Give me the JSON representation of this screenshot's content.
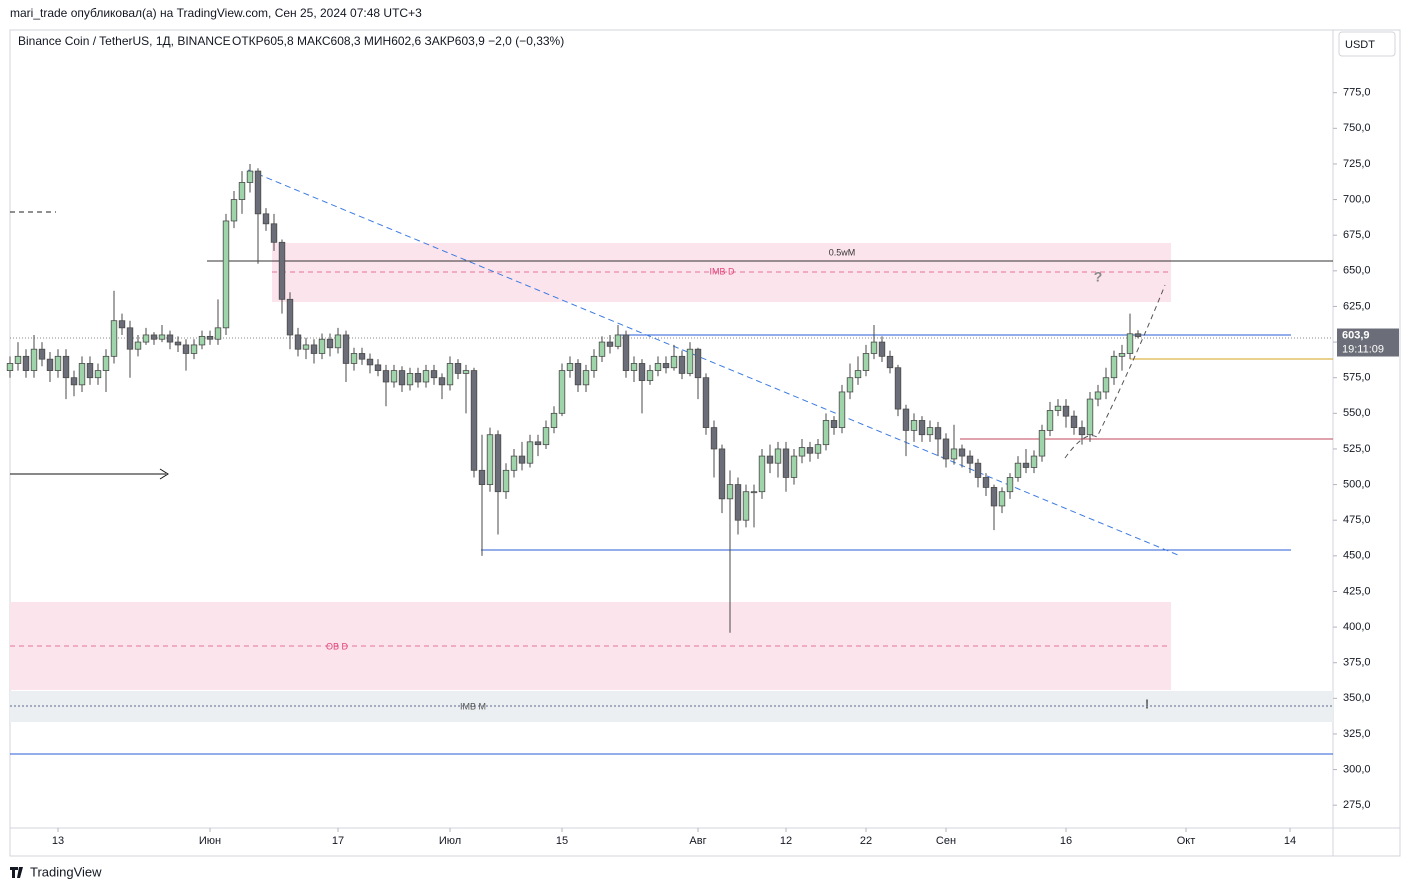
{
  "publisher": "mari_trade опубликовал(а) на TradingView.com, Сен 25, 2024 07:48 UTC+3",
  "currency_button": "USDT",
  "brand": "TradingView",
  "chart_data": {
    "type": "candlestick",
    "title": "Binance Coin / TetherUS, 1Д, BINANCE",
    "legend_text": "ОТКР605,8  МАКС608,3  МИН602,6  ЗАКР603,9  −2,0 (−0,33%)",
    "up_color": "#9fd4ab",
    "down_color": "#6b6e78",
    "wick_color": "#4a4a4a",
    "open": [
      580,
      585,
      590,
      580,
      595,
      588,
      580,
      590,
      575,
      570,
      585,
      575,
      580,
      590,
      615,
      610,
      595,
      600,
      605,
      602,
      605,
      600,
      598,
      592,
      598,
      604,
      602,
      610,
      685,
      700,
      712,
      720,
      690,
      683,
      670,
      630,
      605,
      595,
      598,
      592,
      602,
      596,
      605,
      585,
      592,
      588,
      584,
      580,
      572,
      580,
      570,
      578,
      572,
      580,
      575,
      570,
      585,
      578,
      580,
      510,
      500,
      535,
      495,
      510,
      520,
      515,
      530,
      528,
      540,
      550,
      580,
      585,
      570,
      580,
      590,
      600,
      597,
      605,
      580,
      585,
      573,
      580,
      585,
      582,
      590,
      578,
      595,
      575,
      540,
      525,
      490,
      500,
      475,
      495,
      495,
      520,
      515,
      525,
      505,
      520,
      526,
      522,
      528,
      545,
      540,
      565,
      575,
      580,
      592,
      600,
      590,
      582,
      553,
      538,
      545,
      535,
      540,
      532,
      518,
      525,
      520,
      515,
      505,
      498,
      485,
      495,
      505,
      515,
      512,
      520,
      538,
      552,
      555,
      548,
      540,
      535,
      560,
      565,
      575,
      590,
      592,
      605.8
    ],
    "high": [
      590,
      600,
      595,
      605,
      600,
      593,
      595,
      595,
      580,
      590,
      590,
      585,
      595,
      636,
      620,
      615,
      605,
      610,
      607,
      612,
      608,
      604,
      602,
      602,
      608,
      608,
      630,
      690,
      706,
      720,
      725,
      722,
      694,
      690,
      672,
      635,
      610,
      603,
      602,
      606,
      606,
      610,
      608,
      596,
      596,
      592,
      588,
      584,
      584,
      583,
      582,
      582,
      584,
      584,
      578,
      590,
      588,
      584,
      582,
      535,
      540,
      538,
      515,
      525,
      530,
      535,
      535,
      545,
      555,
      585,
      590,
      588,
      584,
      595,
      604,
      605,
      612,
      608,
      590,
      588,
      584,
      590,
      590,
      598,
      594,
      600,
      596,
      578,
      545,
      528,
      510,
      505,
      500,
      500,
      525,
      528,
      530,
      530,
      525,
      532,
      530,
      532,
      550,
      548,
      570,
      585,
      590,
      598,
      612,
      604,
      594,
      584,
      556,
      550,
      548,
      545,
      544,
      536,
      542,
      528,
      524,
      518,
      508,
      500,
      498,
      508,
      520,
      525,
      524,
      542,
      558,
      560,
      560,
      552,
      545,
      565,
      570,
      582,
      594,
      598,
      620,
      608.3
    ],
    "low": [
      575,
      580,
      575,
      575,
      583,
      572,
      575,
      560,
      562,
      565,
      570,
      570,
      565,
      585,
      605,
      575,
      590,
      598,
      598,
      600,
      595,
      593,
      580,
      588,
      595,
      598,
      598,
      605,
      680,
      690,
      705,
      655,
      678,
      664,
      620,
      595,
      590,
      588,
      585,
      588,
      590,
      592,
      572,
      580,
      584,
      578,
      576,
      555,
      568,
      565,
      566,
      568,
      568,
      570,
      560,
      566,
      574,
      550,
      505,
      450,
      495,
      465,
      490,
      505,
      510,
      512,
      520,
      525,
      536,
      548,
      575,
      565,
      565,
      575,
      586,
      592,
      595,
      575,
      572,
      550,
      570,
      576,
      578,
      580,
      574,
      576,
      560,
      535,
      505,
      480,
      396,
      465,
      470,
      470,
      490,
      508,
      505,
      495,
      500,
      515,
      516,
      518,
      524,
      535,
      536,
      560,
      570,
      576,
      588,
      586,
      578,
      548,
      520,
      530,
      530,
      530,
      520,
      512,
      514,
      512,
      508,
      498,
      492,
      468,
      480,
      490,
      502,
      508,
      508,
      516,
      534,
      548,
      540,
      535,
      528,
      530,
      555,
      560,
      570,
      580,
      588,
      602.6
    ],
    "close": [
      585,
      590,
      580,
      595,
      588,
      580,
      590,
      575,
      570,
      585,
      575,
      580,
      590,
      615,
      610,
      595,
      600,
      605,
      602,
      605,
      600,
      598,
      592,
      598,
      604,
      602,
      610,
      685,
      700,
      712,
      720,
      690,
      683,
      670,
      630,
      605,
      595,
      598,
      592,
      602,
      596,
      605,
      585,
      592,
      588,
      584,
      580,
      572,
      580,
      570,
      578,
      572,
      580,
      575,
      570,
      585,
      578,
      580,
      510,
      500,
      535,
      495,
      510,
      520,
      515,
      530,
      528,
      540,
      550,
      580,
      585,
      570,
      580,
      590,
      600,
      597,
      605,
      580,
      585,
      573,
      580,
      585,
      582,
      590,
      578,
      595,
      575,
      540,
      525,
      490,
      500,
      475,
      495,
      495,
      520,
      515,
      525,
      505,
      520,
      526,
      522,
      528,
      545,
      540,
      565,
      575,
      580,
      592,
      600,
      590,
      582,
      553,
      538,
      545,
      535,
      540,
      532,
      518,
      525,
      520,
      515,
      505,
      498,
      485,
      495,
      505,
      515,
      512,
      520,
      538,
      552,
      555,
      548,
      540,
      535,
      560,
      565,
      575,
      590,
      592,
      605.8,
      603.9
    ],
    "xlim": [
      0,
      165.375
    ],
    "xticks": [
      {
        "value": 6,
        "label": "13"
      },
      {
        "value": 25,
        "label": "Июн"
      },
      {
        "value": 41,
        "label": "17"
      },
      {
        "value": 55,
        "label": "Июл"
      },
      {
        "value": 69,
        "label": "15"
      },
      {
        "value": 86,
        "label": "Авг"
      },
      {
        "value": 97,
        "label": "12"
      },
      {
        "value": 107,
        "label": "22"
      },
      {
        "value": 117,
        "label": "Сен"
      },
      {
        "value": 132,
        "label": "16"
      },
      {
        "value": 147,
        "label": "Окт"
      },
      {
        "value": 160,
        "label": "14"
      }
    ],
    "ylim": [
      259,
      819
    ],
    "yticks": [
      {
        "value": 275,
        "label": "275,0"
      },
      {
        "value": 300,
        "label": "300,0"
      },
      {
        "value": 325,
        "label": "325,0"
      },
      {
        "value": 350,
        "label": "350,0"
      },
      {
        "value": 375,
        "label": "375,0"
      },
      {
        "value": 400,
        "label": "400,0"
      },
      {
        "value": 425,
        "label": "425,0"
      },
      {
        "value": 450,
        "label": "450,0"
      },
      {
        "value": 475,
        "label": "475,0"
      },
      {
        "value": 500,
        "label": "500,0"
      },
      {
        "value": 525,
        "label": "525,0"
      },
      {
        "value": 550,
        "label": "550,0"
      },
      {
        "value": 575,
        "label": "575,0"
      },
      {
        "value": 600,
        "label": "600,0"
      },
      {
        "value": 625,
        "label": "625,0"
      },
      {
        "value": 650,
        "label": "650,0"
      },
      {
        "value": 675,
        "label": "675,0"
      },
      {
        "value": 700,
        "label": "700,0"
      },
      {
        "value": 725,
        "label": "725,0"
      },
      {
        "value": 750,
        "label": "750,0"
      },
      {
        "value": 775,
        "label": "775,0"
      }
    ],
    "last_price": {
      "value": 603.9,
      "label": "603,9"
    },
    "countdown": "19:11:09",
    "annotations": {
      "half_wm": "0.5wM",
      "imb_d": "IMB D",
      "ob_d": "OB D",
      "imb_m": "IMB M",
      "question": "?",
      "exclaim": "!"
    }
  }
}
